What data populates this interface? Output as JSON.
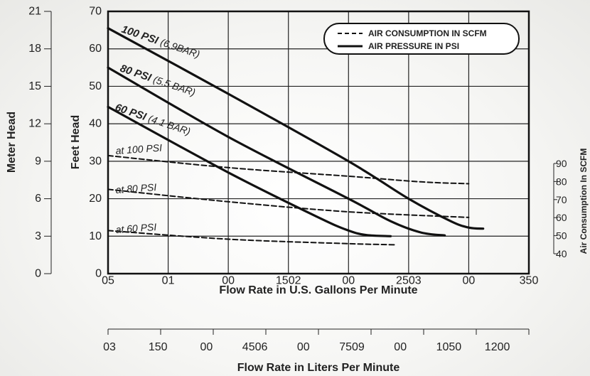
{
  "chart_data": {
    "type": "line",
    "x": {
      "label": "Flow Rate in U.S. Gallons Per Minute",
      "range": [
        0,
        350
      ],
      "tick_values": [
        0,
        50,
        100,
        150,
        200,
        250,
        300,
        350
      ],
      "tick_labels": [
        "05",
        "01",
        "00",
        "1502",
        "00",
        "2503",
        "00",
        "350"
      ]
    },
    "x2": {
      "label": "Flow Rate in Liters Per Minute",
      "tick_labels": [
        "03",
        "150",
        "00",
        "4506",
        "00",
        "7509",
        "00",
        "1050",
        "1200"
      ]
    },
    "y_feet": {
      "label": "Feet Head",
      "range": [
        0,
        70
      ],
      "tick_values": [
        0,
        10,
        20,
        30,
        40,
        50,
        60,
        70
      ],
      "tick_labels": [
        "0",
        "10",
        "20",
        "30",
        "40",
        "50",
        "60",
        "70"
      ]
    },
    "y_meter": {
      "label": "Meter Head",
      "tick_labels": [
        "0",
        "3",
        "6",
        "9",
        "12",
        "15",
        "18",
        "21"
      ]
    },
    "y_scfm": {
      "label": "Air Consumption In SCFM",
      "tick_labels": [
        "90",
        "80",
        "70",
        "60",
        "50",
        "40"
      ]
    },
    "legend": {
      "items": [
        {
          "label": "AIR CONSUMPTION IN SCFM",
          "style": "dashed"
        },
        {
          "label": "AIR PRESSURE IN PSI",
          "style": "solid"
        }
      ],
      "position": "top-right"
    },
    "grid": true,
    "series": [
      {
        "name_bold": "100 PSI",
        "name_rest": "(6.9BAR)",
        "style": "solid",
        "points": [
          [
            0,
            65.5
          ],
          [
            100,
            48
          ],
          [
            200,
            30
          ],
          [
            250,
            20
          ],
          [
            285,
            14
          ],
          [
            300,
            12.3
          ],
          [
            312,
            12
          ]
        ]
      },
      {
        "name_bold": "80 PSI",
        "name_rest": "(5.5 BAR)",
        "style": "solid",
        "points": [
          [
            0,
            55
          ],
          [
            100,
            36.5
          ],
          [
            200,
            20
          ],
          [
            235,
            14
          ],
          [
            260,
            11
          ],
          [
            280,
            10.2
          ]
        ]
      },
      {
        "name_bold": "60 PSI",
        "name_rest": "(4.1 BAR)",
        "style": "solid",
        "points": [
          [
            0,
            44.5
          ],
          [
            100,
            27
          ],
          [
            175,
            15
          ],
          [
            200,
            11.5
          ],
          [
            215,
            10.3
          ],
          [
            235,
            10
          ]
        ]
      },
      {
        "name": "at 100 PSI",
        "style": "dashed",
        "points": [
          [
            0,
            31.5
          ],
          [
            100,
            28.3
          ],
          [
            200,
            26
          ],
          [
            260,
            24.5
          ],
          [
            300,
            24
          ]
        ]
      },
      {
        "name": "at 80 PSI",
        "style": "dashed",
        "points": [
          [
            0,
            22.5
          ],
          [
            100,
            19.2
          ],
          [
            200,
            16.5
          ],
          [
            300,
            15
          ]
        ]
      },
      {
        "name": "at 60 PSI",
        "style": "dashed",
        "points": [
          [
            0,
            11.5
          ],
          [
            100,
            9.2
          ],
          [
            200,
            8
          ],
          [
            240,
            7.7
          ]
        ]
      }
    ]
  }
}
